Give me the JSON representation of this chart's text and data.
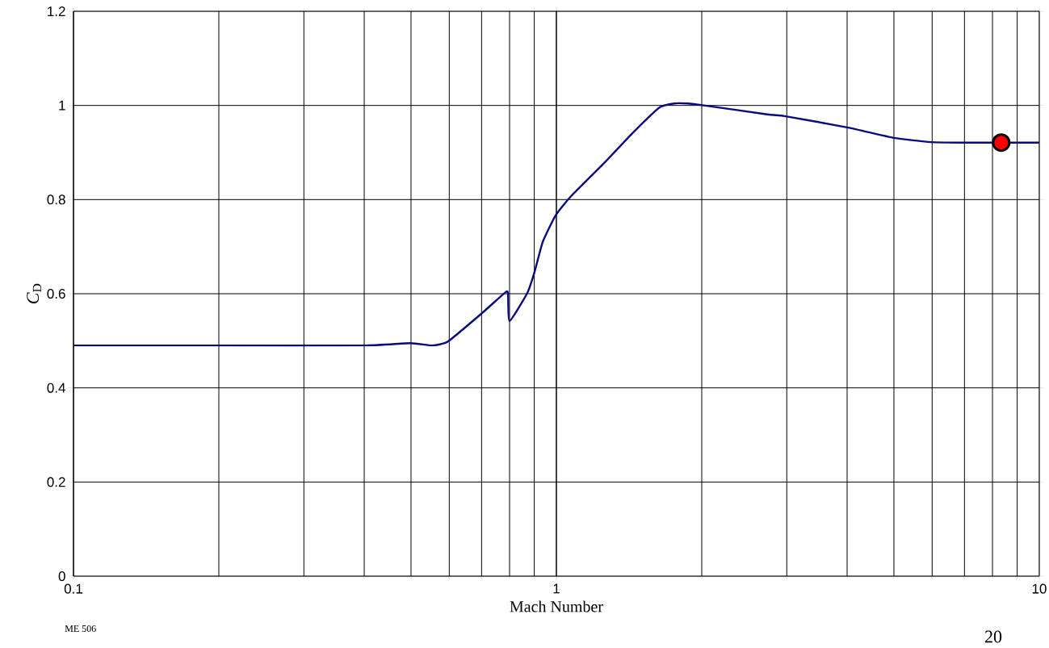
{
  "chart_data": {
    "type": "line",
    "xlabel": "Mach Number",
    "ylabel": "*C*$_{D}$",
    "log": "x",
    "grid": true,
    "xlim": [
      0.1,
      10
    ],
    "xticks": [
      0.1,
      1,
      10
    ],
    "ylim": [
      0,
      1.2
    ],
    "yticks": [
      0,
      0.2,
      0.4,
      0.6,
      0.8,
      1,
      1.2
    ],
    "annotations": [
      "ME 506",
      "20"
    ],
    "series": [
      {
        "color": "#0a0a80",
        "marker": "none",
        "x": [
          0.1,
          0.2,
          0.398,
          0.498,
          0.553,
          0.597,
          0.702,
          0.782,
          0.794,
          0.8,
          0.871,
          0.901,
          0.937,
          0.996,
          1.072,
          1.265,
          1.437,
          1.637,
          1.789,
          1.993,
          2.733,
          2.985,
          4.02,
          5.0,
          5.97,
          6.96,
          10
        ],
        "values": [
          0.49,
          0.49,
          0.49,
          0.495,
          0.49,
          0.499,
          0.559,
          0.602,
          0.602,
          0.542,
          0.602,
          0.646,
          0.71,
          0.766,
          0.807,
          0.881,
          0.941,
          0.996,
          1.005,
          1.001,
          0.981,
          0.977,
          0.953,
          0.931,
          0.922,
          0.921,
          0.921
        ]
      },
      {
        "type": "scatter",
        "color": "#ff0000",
        "marker": "circle",
        "x": [
          8.34
        ],
        "values": [
          0.921
        ]
      }
    ]
  }
}
